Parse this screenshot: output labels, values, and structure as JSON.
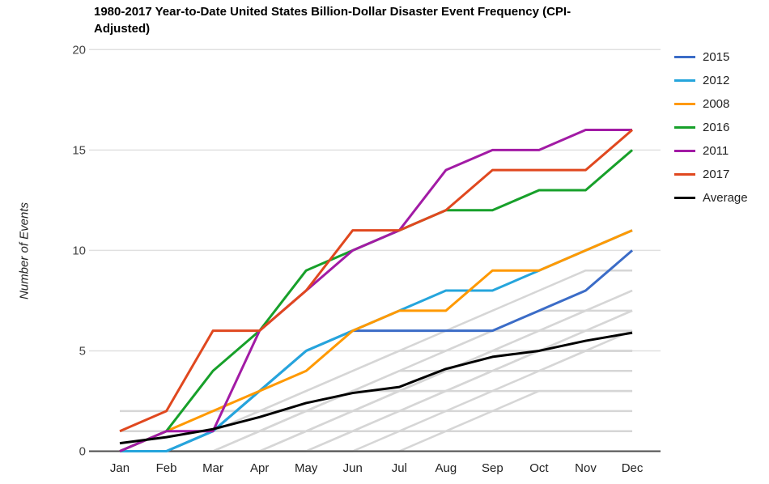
{
  "chart_data": {
    "type": "line",
    "title": "1980-2017 Year-to-Date United States Billion-Dollar Disaster Event Frequency (CPI-Adjusted)",
    "title_lines": [
      "1980-2017 Year-to-Date United States Billion-Dollar Disaster Event Frequency (CPI-",
      "Adjusted)"
    ],
    "ylabel": "Number of Events",
    "xlabel": "",
    "categories": [
      "Jan",
      "Feb",
      "Mar",
      "Apr",
      "May",
      "Jun",
      "Jul",
      "Aug",
      "Sep",
      "Oct",
      "Nov",
      "Dec"
    ],
    "y_ticks": [
      0,
      5,
      10,
      15,
      20
    ],
    "ylim": [
      0,
      20
    ],
    "grid": true,
    "legend_position": "right",
    "series": [
      {
        "name": "2015",
        "color": "#3b6cc7",
        "values": [
          0,
          0,
          1,
          3,
          5,
          6,
          6,
          6,
          6,
          7,
          8,
          10
        ]
      },
      {
        "name": "2012",
        "color": "#25a5dc",
        "values": [
          0,
          0,
          1,
          3,
          5,
          6,
          7,
          8,
          8,
          9,
          10,
          11
        ]
      },
      {
        "name": "2008",
        "color": "#ff9900",
        "values": [
          0,
          1,
          2,
          3,
          4,
          6,
          7,
          7,
          9,
          9,
          10,
          11
        ]
      },
      {
        "name": "2016",
        "color": "#17a02a",
        "values": [
          0,
          1,
          4,
          6,
          9,
          10,
          11,
          12,
          12,
          13,
          13,
          15
        ]
      },
      {
        "name": "2011",
        "color": "#a21ba5",
        "values": [
          0,
          1,
          1,
          6,
          8,
          10,
          11,
          14,
          15,
          15,
          16,
          16
        ]
      },
      {
        "name": "2017",
        "color": "#e0481f",
        "values": [
          1,
          2,
          6,
          6,
          8,
          11,
          11,
          12,
          14,
          14,
          14,
          16
        ]
      },
      {
        "name": "Average",
        "color": "#000000",
        "values": [
          0.4,
          0.7,
          1.1,
          1.7,
          2.4,
          2.9,
          3.2,
          4.1,
          4.7,
          5.0,
          5.5,
          5.9
        ]
      }
    ],
    "background_series": {
      "color": "#d6d6d6",
      "lines": [
        [
          0,
          0,
          0,
          1,
          2,
          3,
          3,
          4,
          4,
          4,
          5,
          5
        ],
        [
          2,
          2,
          2,
          2,
          2,
          3,
          4,
          5,
          6,
          6,
          7,
          7
        ],
        [
          1,
          1,
          1,
          1,
          2,
          2,
          3,
          3,
          4,
          5,
          5,
          5
        ],
        [
          0,
          0,
          1,
          2,
          3,
          4,
          5,
          6,
          7,
          8,
          9,
          9
        ],
        [
          0,
          0,
          0,
          0,
          1,
          2,
          3,
          4,
          5,
          6,
          7,
          8
        ],
        [
          0,
          1,
          1,
          2,
          2,
          3,
          4,
          4,
          5,
          6,
          6,
          7
        ],
        [
          0,
          0,
          0,
          1,
          1,
          2,
          2,
          3,
          3,
          4,
          4,
          4
        ],
        [
          0,
          0,
          0,
          0,
          0,
          1,
          2,
          3,
          4,
          4,
          5,
          6
        ],
        [
          0,
          0,
          0,
          0,
          1,
          1,
          2,
          2,
          3,
          3,
          3,
          3
        ],
        [
          0,
          0,
          1,
          1,
          2,
          3,
          3,
          4,
          5,
          5,
          6,
          6
        ],
        [
          0,
          0,
          0,
          0,
          0,
          0,
          1,
          1,
          2,
          2,
          2,
          2
        ],
        [
          0,
          0,
          0,
          0,
          0,
          1,
          1,
          2,
          2,
          3,
          3,
          3
        ],
        [
          1,
          1,
          2,
          2,
          3,
          4,
          5,
          5,
          6,
          7,
          7,
          8
        ],
        [
          0,
          0,
          0,
          0,
          0,
          0,
          0,
          1,
          1,
          1,
          1,
          1
        ],
        [
          0,
          0,
          0,
          1,
          2,
          2,
          3,
          4,
          4,
          5,
          6,
          7
        ],
        [
          0,
          0,
          0,
          0,
          1,
          2,
          3,
          3,
          4,
          5,
          5,
          5
        ]
      ]
    }
  },
  "colors": {
    "gridline": "#e0e0e0",
    "axis_line": "#4d4d4d",
    "y_tick_label": "#444444",
    "x_tick_label": "#222222",
    "title": "#000000"
  }
}
